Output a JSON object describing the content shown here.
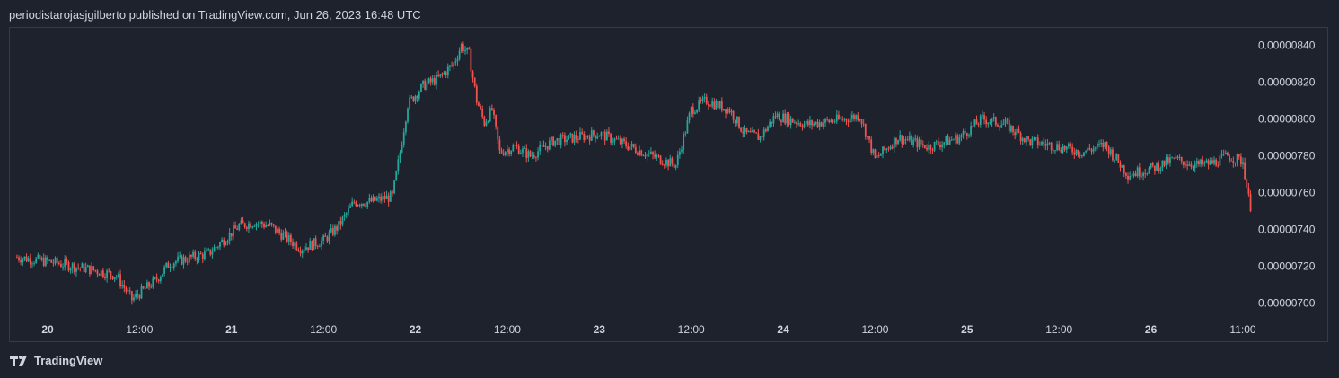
{
  "header": {
    "text": "periodistarojasjgilberto published on TradingView.com, Jun 26, 2023 16:48 UTC"
  },
  "brand": {
    "label": "TradingView",
    "icon": "tradingview-logo-icon"
  },
  "colors": {
    "up": "#26a69a",
    "down": "#ef5350",
    "background": "#1e222d",
    "border": "#363a45",
    "text": "#d1d4dc"
  },
  "chart_data": {
    "type": "candlestick",
    "title": "",
    "y_ticks": [
      "0.00000840",
      "0.00000820",
      "0.00000800",
      "0.00000780",
      "0.00000760",
      "0.00000740",
      "0.00000720",
      "0.00000700"
    ],
    "x_ticks": [
      {
        "label": "20",
        "day": true
      },
      {
        "label": "12:00",
        "day": false
      },
      {
        "label": "21",
        "day": true
      },
      {
        "label": "12:00",
        "day": false
      },
      {
        "label": "22",
        "day": true
      },
      {
        "label": "12:00",
        "day": false
      },
      {
        "label": "23",
        "day": true
      },
      {
        "label": "12:00",
        "day": false
      },
      {
        "label": "24",
        "day": true
      },
      {
        "label": "12:00",
        "day": false
      },
      {
        "label": "25",
        "day": true
      },
      {
        "label": "12:00",
        "day": false
      },
      {
        "label": "26",
        "day": true
      },
      {
        "label": "11:00",
        "day": false
      }
    ],
    "ylim": [
      6.95e-06,
      8.48e-06
    ],
    "x_index_range": [
      0,
      160
    ],
    "tick_positions": [
      4,
      16,
      28,
      40,
      52,
      64,
      76,
      88,
      100,
      112,
      124,
      136,
      148,
      160
    ],
    "price_path": [
      [
        0,
        7.25
      ],
      [
        5,
        7.22
      ],
      [
        10,
        7.18
      ],
      [
        13,
        7.15
      ],
      [
        15,
        7.02
      ],
      [
        18,
        7.12
      ],
      [
        20,
        7.22
      ],
      [
        25,
        7.27
      ],
      [
        29,
        7.42
      ],
      [
        31,
        7.44
      ],
      [
        33,
        7.42
      ],
      [
        35,
        7.36
      ],
      [
        37,
        7.3
      ],
      [
        40,
        7.34
      ],
      [
        42,
        7.42
      ],
      [
        44,
        7.55
      ],
      [
        46,
        7.55
      ],
      [
        49,
        7.58
      ],
      [
        50,
        7.82
      ],
      [
        51,
        8.08
      ],
      [
        53,
        8.18
      ],
      [
        55,
        8.22
      ],
      [
        57,
        8.3
      ],
      [
        58,
        8.4
      ],
      [
        59,
        8.35
      ],
      [
        60,
        8.1
      ],
      [
        61,
        7.98
      ],
      [
        62,
        8.05
      ],
      [
        63,
        7.82
      ],
      [
        65,
        7.85
      ],
      [
        67,
        7.8
      ],
      [
        70,
        7.88
      ],
      [
        73,
        7.9
      ],
      [
        76,
        7.92
      ],
      [
        80,
        7.85
      ],
      [
        84,
        7.78
      ],
      [
        86,
        7.75
      ],
      [
        88,
        8.05
      ],
      [
        90,
        8.1
      ],
      [
        93,
        8.05
      ],
      [
        95,
        7.92
      ],
      [
        97,
        7.9
      ],
      [
        99,
        8.02
      ],
      [
        103,
        7.97
      ],
      [
        108,
        8.0
      ],
      [
        110,
        8.02
      ],
      [
        112,
        7.78
      ],
      [
        115,
        7.9
      ],
      [
        119,
        7.85
      ],
      [
        123,
        7.9
      ],
      [
        126,
        8.0
      ],
      [
        129,
        7.97
      ],
      [
        132,
        7.88
      ],
      [
        136,
        7.85
      ],
      [
        139,
        7.82
      ],
      [
        142,
        7.86
      ],
      [
        145,
        7.7
      ],
      [
        148,
        7.73
      ],
      [
        151,
        7.78
      ],
      [
        154,
        7.75
      ],
      [
        156,
        7.76
      ],
      [
        158,
        7.8
      ],
      [
        160,
        7.77
      ],
      [
        161,
        7.5
      ]
    ],
    "price_unit_scale": 1e-06,
    "grid": false,
    "legend": "none"
  }
}
